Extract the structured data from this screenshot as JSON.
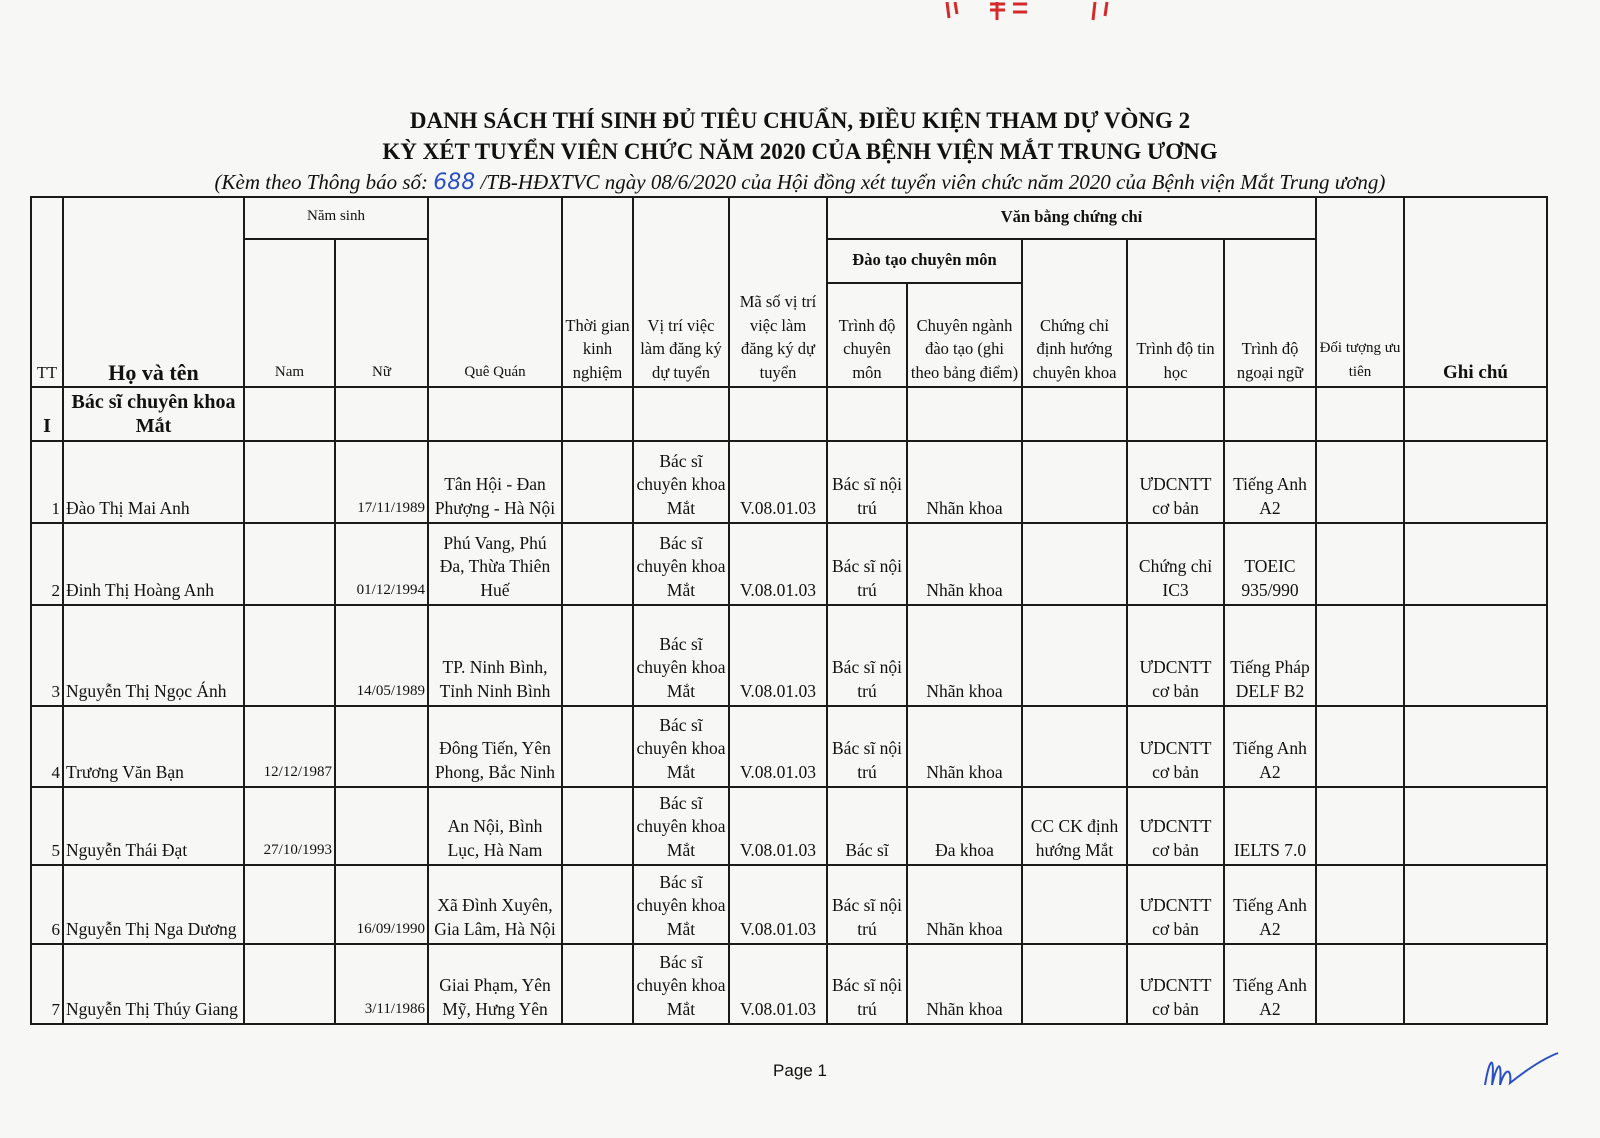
{
  "header": {
    "title_line1": "DANH SÁCH THÍ SINH ĐỦ TIÊU CHUẨN, ĐIỀU KIỆN THAM DỰ VÒNG 2",
    "title_line2": "KỲ XÉT TUYỂN VIÊN CHỨC NĂM 2020 CỦA BỆNH VIỆN MẮT TRUNG ƯƠNG",
    "subtitle_prefix": "(Kèm theo Thông báo số: ",
    "notice_number": "688",
    "subtitle_suffix": " /TB-HĐXTVC ngày 08/6/2020 của Hội đồng xét tuyển viên chức năm 2020 của Bệnh viện Mắt Trung ương)"
  },
  "columns": {
    "tt": "TT",
    "name": "Họ và tên",
    "birth_year": "Năm sinh",
    "male": "Nam",
    "female": "Nữ",
    "hometown": "Quê Quán",
    "experience": "Thời gian kinh nghiệm",
    "position": "Vị trí việc làm đăng ký dự tuyển",
    "position_code": "Mã số vị trí việc làm đăng ký dự tuyển",
    "certificates": "Văn bằng chứng chỉ",
    "training": "Đào tạo chuyên môn",
    "level": "Trình độ chuyên môn",
    "major": "Chuyên ngành đào tạo (ghi theo bảng điểm)",
    "specialty_cert": "Chứng chỉ định hướng chuyên khoa",
    "it_level": "Trình độ tin học",
    "language_level": "Trình độ ngoại ngữ",
    "priority": "Đối tượng ưu tiên",
    "notes": "Ghi chú"
  },
  "section": {
    "number": "I",
    "label": "Bác sĩ chuyên khoa Mắt"
  },
  "rows": [
    {
      "tt": "1",
      "name": "Đào Thị Mai Anh",
      "male": "",
      "female": "17/11/1989",
      "hometown": "Tân Hội - Đan Phượng - Hà Nội",
      "experience": "",
      "position": "Bác sĩ chuyên khoa Mắt",
      "code": "V.08.01.03",
      "level": "Bác sĩ nội trú",
      "major": "Nhãn khoa",
      "cert": "",
      "it": "ƯDCNTT cơ bản",
      "lang": "Tiếng Anh A2",
      "priority": "",
      "notes": ""
    },
    {
      "tt": "2",
      "name": "Đinh Thị Hoàng Anh",
      "male": "",
      "female": "01/12/1994",
      "hometown": "Phú Vang, Phú Đa, Thừa Thiên Huế",
      "experience": "",
      "position": "Bác sĩ chuyên khoa Mắt",
      "code": "V.08.01.03",
      "level": "Bác sĩ nội trú",
      "major": "Nhãn khoa",
      "cert": "",
      "it": "Chứng chỉ IC3",
      "lang": "TOEIC 935/990",
      "priority": "",
      "notes": ""
    },
    {
      "tt": "3",
      "name": "Nguyễn Thị Ngọc Ánh",
      "male": "",
      "female": "14/05/1989",
      "hometown": "TP. Ninh Bình, Tỉnh Ninh Bình",
      "experience": "",
      "position": "Bác sĩ chuyên khoa Mắt",
      "code": "V.08.01.03",
      "level": "Bác sĩ nội trú",
      "major": "Nhãn khoa",
      "cert": "",
      "it": "ƯDCNTT cơ bản",
      "lang": "Tiếng Pháp DELF B2",
      "priority": "",
      "notes": ""
    },
    {
      "tt": "4",
      "name": "Trương Văn Bạn",
      "male": "12/12/1987",
      "female": "",
      "hometown": "Đông Tiến, Yên Phong, Bắc Ninh",
      "experience": "",
      "position": "Bác sĩ chuyên khoa Mắt",
      "code": "V.08.01.03",
      "level": "Bác sĩ nội trú",
      "major": "Nhãn khoa",
      "cert": "",
      "it": "ƯDCNTT cơ bản",
      "lang": "Tiếng Anh A2",
      "priority": "",
      "notes": ""
    },
    {
      "tt": "5",
      "name": "Nguyễn Thái Đạt",
      "male": "27/10/1993",
      "female": "",
      "hometown": "An Nội, Bình Lục, Hà Nam",
      "experience": "",
      "position": "Bác sĩ chuyên khoa Mắt",
      "code": "V.08.01.03",
      "level": "Bác sĩ",
      "major": "Đa khoa",
      "cert": "CC CK định hướng Mắt",
      "it": "ƯDCNTT cơ bản",
      "lang": "IELTS 7.0",
      "priority": "",
      "notes": ""
    },
    {
      "tt": "6",
      "name": "Nguyễn Thị Nga Dương",
      "male": "",
      "female": "16/09/1990",
      "hometown": "Xã Đình Xuyên, Gia Lâm, Hà Nội",
      "experience": "",
      "position": "Bác sĩ chuyên khoa Mắt",
      "code": "V.08.01.03",
      "level": "Bác sĩ nội trú",
      "major": "Nhãn khoa",
      "cert": "",
      "it": "ƯDCNTT cơ bản",
      "lang": "Tiếng Anh A2",
      "priority": "",
      "notes": ""
    },
    {
      "tt": "7",
      "name": "Nguyễn Thị Thúy Giang",
      "male": "",
      "female": "3/11/1986",
      "hometown": "Giai Phạm, Yên Mỹ, Hưng Yên",
      "experience": "",
      "position": "Bác sĩ chuyên khoa Mắt",
      "code": "V.08.01.03",
      "level": "Bác sĩ nội trú",
      "major": "Nhãn khoa",
      "cert": "",
      "it": "ƯDCNTT cơ bản",
      "lang": "Tiếng Anh A2",
      "priority": "",
      "notes": ""
    }
  ],
  "footer": {
    "page": "Page 1"
  },
  "colors": {
    "ink": "#111111",
    "handwriting": "#2a4fc4",
    "stamp": "#d42a2a"
  }
}
